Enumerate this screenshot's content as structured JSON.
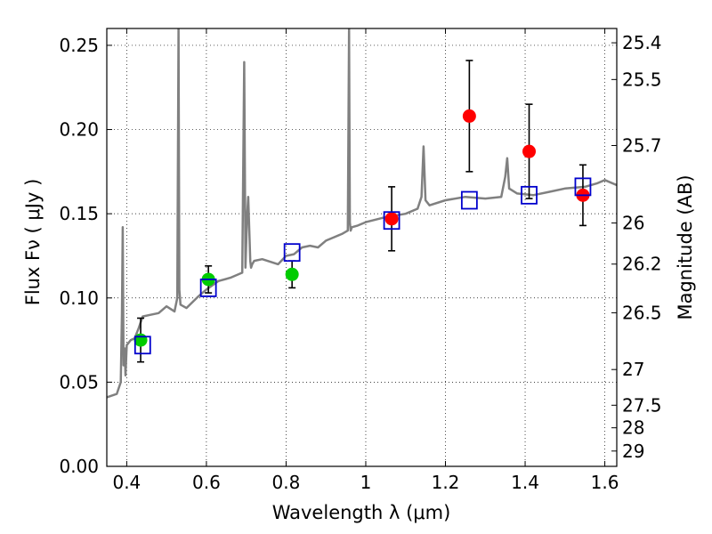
{
  "chart_data": {
    "type": "scatter",
    "xlabel": "Wavelength  λ (μm)",
    "ylabel": "Flux  Fν  ( μJy )",
    "ylabel_right": "Magnitude (AB)",
    "xlim": [
      0.35,
      1.63
    ],
    "ylim": [
      0.0,
      0.26
    ],
    "grid": true,
    "x_ticks": [
      0.4,
      0.6,
      0.8,
      1.0,
      1.2,
      1.4,
      1.6
    ],
    "x_tick_labels": [
      "0.4",
      "0.6",
      "0.8",
      "1",
      "1.2",
      "1.4",
      "1.6"
    ],
    "y_ticks": [
      0.0,
      0.05,
      0.1,
      0.15,
      0.2,
      0.25
    ],
    "y_tick_labels": [
      "0.00",
      "0.05",
      "0.10",
      "0.15",
      "0.20",
      "0.25"
    ],
    "right_ticks": [
      {
        "label": "25.4",
        "flux": 0.2515
      },
      {
        "label": "25.5",
        "flux": 0.2297
      },
      {
        "label": "25.7",
        "flux": 0.1905
      },
      {
        "label": "26",
        "flux": 0.1445
      },
      {
        "label": "26.2",
        "flux": 0.1201
      },
      {
        "label": "26.5",
        "flux": 0.0912
      },
      {
        "label": "27",
        "flux": 0.0575
      },
      {
        "label": "27.5",
        "flux": 0.0363
      },
      {
        "label": "28",
        "flux": 0.0229
      },
      {
        "label": "29",
        "flux": 0.0091
      }
    ],
    "model_spectrum": {
      "color": "#808080",
      "x": [
        0.35,
        0.375,
        0.385,
        0.388,
        0.39,
        0.392,
        0.395,
        0.397,
        0.4,
        0.41,
        0.42,
        0.43,
        0.44,
        0.46,
        0.48,
        0.5,
        0.52,
        0.527,
        0.53,
        0.532,
        0.535,
        0.55,
        0.58,
        0.6,
        0.63,
        0.66,
        0.69,
        0.695,
        0.698,
        0.702,
        0.705,
        0.71,
        0.712,
        0.715,
        0.72,
        0.74,
        0.78,
        0.8,
        0.82,
        0.84,
        0.86,
        0.88,
        0.9,
        0.92,
        0.94,
        0.955,
        0.958,
        0.96,
        0.962,
        0.965,
        0.98,
        1.0,
        1.05,
        1.1,
        1.13,
        1.14,
        1.145,
        1.15,
        1.16,
        1.2,
        1.25,
        1.3,
        1.34,
        1.35,
        1.355,
        1.36,
        1.38,
        1.42,
        1.46,
        1.5,
        1.55,
        1.58,
        1.6,
        1.63
      ],
      "y": [
        0.041,
        0.043,
        0.05,
        0.09,
        0.142,
        0.06,
        0.07,
        0.054,
        0.072,
        0.075,
        0.076,
        0.082,
        0.089,
        0.09,
        0.091,
        0.095,
        0.092,
        0.1,
        0.26,
        0.105,
        0.096,
        0.094,
        0.101,
        0.105,
        0.11,
        0.112,
        0.115,
        0.24,
        0.118,
        0.148,
        0.16,
        0.122,
        0.118,
        0.12,
        0.122,
        0.123,
        0.12,
        0.125,
        0.126,
        0.13,
        0.131,
        0.13,
        0.134,
        0.136,
        0.138,
        0.14,
        0.26,
        0.145,
        0.14,
        0.142,
        0.143,
        0.145,
        0.148,
        0.15,
        0.153,
        0.16,
        0.19,
        0.158,
        0.155,
        0.158,
        0.16,
        0.159,
        0.16,
        0.172,
        0.183,
        0.165,
        0.162,
        0.161,
        0.163,
        0.165,
        0.166,
        0.168,
        0.17,
        0.167
      ]
    },
    "series": [
      {
        "marker": "circle",
        "color": "#00cc00",
        "points": [
          {
            "x": 0.435,
            "y": 0.075,
            "err": 0.013
          },
          {
            "x": 0.605,
            "y": 0.111,
            "err": 0.008
          },
          {
            "x": 0.815,
            "y": 0.114,
            "err": 0.008
          }
        ]
      },
      {
        "marker": "circle",
        "color": "#ff0000",
        "points": [
          {
            "x": 1.065,
            "y": 0.147,
            "err": 0.019
          },
          {
            "x": 1.26,
            "y": 0.208,
            "err": 0.033
          },
          {
            "x": 1.41,
            "y": 0.187,
            "err": 0.028
          },
          {
            "x": 1.545,
            "y": 0.161,
            "err": 0.018
          }
        ]
      },
      {
        "marker": "open-square",
        "color": "#0000cc",
        "points": [
          {
            "x": 0.44,
            "y": 0.072
          },
          {
            "x": 0.605,
            "y": 0.106
          },
          {
            "x": 0.815,
            "y": 0.127
          },
          {
            "x": 1.065,
            "y": 0.146
          },
          {
            "x": 1.26,
            "y": 0.158
          },
          {
            "x": 1.41,
            "y": 0.161
          },
          {
            "x": 1.545,
            "y": 0.166
          }
        ]
      }
    ]
  }
}
